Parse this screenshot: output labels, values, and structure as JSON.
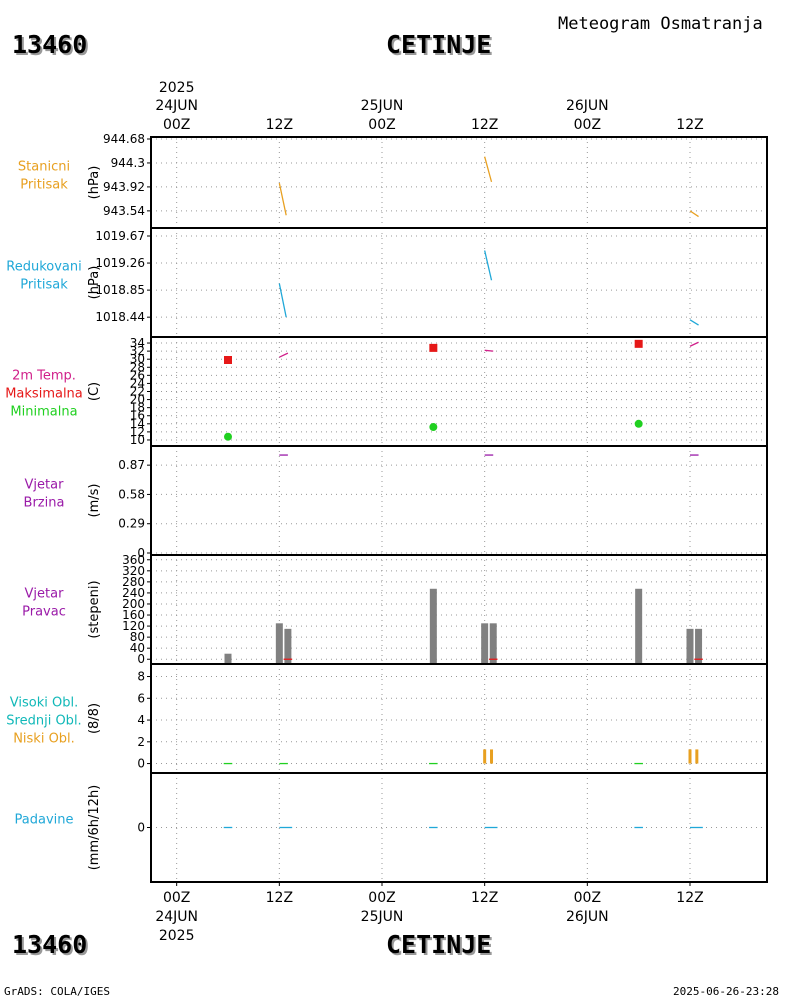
{
  "header": {
    "station_id": "13460",
    "station_name": "CETINJE",
    "product_title": "Meteogram Osmatranja"
  },
  "footer": {
    "station_id": "13460",
    "station_name": "CETINJE",
    "credit": "GrADS: COLA/IGES",
    "timestamp": "2025-06-26-23:28"
  },
  "colors": {
    "orange": "#e8a020",
    "cyan": "#20a8d8",
    "magenta": "#d0208a",
    "red": "#e61818",
    "green": "#20d020",
    "purple": "#9a1aa8",
    "teal": "#10b8b8",
    "gray": "#808080",
    "grid": "#999999"
  },
  "chart_data": {
    "type": "line",
    "x_axis": {
      "hours": [
        0,
        12,
        24,
        36,
        48,
        60
      ],
      "tick_labels": [
        "00Z",
        "12Z",
        "00Z",
        "12Z",
        "00Z",
        "12Z"
      ],
      "date_labels": [
        {
          "hour": 0,
          "text": "24JUN"
        },
        {
          "hour": 24,
          "text": "25JUN"
        },
        {
          "hour": 48,
          "text": "26JUN"
        }
      ],
      "year_label": {
        "hour": 0,
        "text": "2025"
      },
      "xlim": [
        -3,
        69
      ]
    },
    "panels": [
      {
        "id": "stanicni",
        "labels": [
          {
            "text": "Stanicni",
            "color": "orange"
          },
          {
            "text": "Pritisak",
            "color": "orange"
          }
        ],
        "unit": "(hPa)",
        "ylim": [
          943.3,
          944.68
        ],
        "ticks": [
          943.54,
          943.92,
          944.3,
          944.68
        ],
        "tick_labels": [
          "943.54",
          "943.92",
          "944.3",
          "944.68"
        ],
        "series": [
          {
            "name": "Stanicni Pritisak",
            "type": "segments",
            "color": "orange",
            "segments": [
              [
                [
                  12.0,
                  943.98
                ],
                [
                  12.8,
                  943.47
                ]
              ],
              [
                [
                  36.0,
                  944.4
                ],
                [
                  36.8,
                  944.0
                ]
              ],
              [
                [
                  60.0,
                  943.54
                ],
                [
                  61.0,
                  943.45
                ]
              ]
            ]
          }
        ]
      },
      {
        "id": "redukovani",
        "labels": [
          {
            "text": "Redukovani",
            "color": "cyan"
          },
          {
            "text": "Pritisak",
            "color": "cyan"
          }
        ],
        "unit": "(hPa)",
        "ylim": [
          1018.2,
          1019.67
        ],
        "ticks": [
          1018.44,
          1018.85,
          1019.26,
          1019.67
        ],
        "tick_labels": [
          "1018.44",
          "1018.85",
          "1019.26",
          "1019.67"
        ],
        "series": [
          {
            "name": "Redukovani Pritisak",
            "type": "segments",
            "color": "cyan",
            "segments": [
              [
                [
                  12.0,
                  1018.95
                ],
                [
                  12.8,
                  1018.44
                ]
              ],
              [
                [
                  36.0,
                  1019.45
                ],
                [
                  36.8,
                  1019.0
                ]
              ],
              [
                [
                  60.0,
                  1018.4
                ],
                [
                  61.0,
                  1018.32
                ]
              ]
            ]
          }
        ]
      },
      {
        "id": "temperatura",
        "labels": [
          {
            "text": "2m Temp.",
            "color": "magenta"
          },
          {
            "text": "Maksimalna",
            "color": "red"
          },
          {
            "text": "Minimalna",
            "color": "green"
          }
        ],
        "unit": "(C)",
        "ylim": [
          9,
          35
        ],
        "ticks": [
          10,
          12,
          14,
          16,
          18,
          20,
          22,
          24,
          26,
          28,
          30,
          32,
          34
        ],
        "tick_labels": [
          "10",
          "12",
          "14",
          "16",
          "18",
          "20",
          "22",
          "24",
          "26",
          "28",
          "30",
          "32",
          "34"
        ],
        "series": [
          {
            "name": "2m Temp.",
            "type": "segments",
            "color": "magenta",
            "segments": [
              [
                [
                  12.0,
                  30.5
                ],
                [
                  13.0,
                  31.5
                ]
              ],
              [
                [
                  36.0,
                  32.2
                ],
                [
                  37.0,
                  32.0
                ]
              ],
              [
                [
                  60.0,
                  33.2
                ],
                [
                  61.0,
                  34.2
                ]
              ]
            ]
          },
          {
            "name": "Maksimalna",
            "type": "square",
            "color": "red",
            "points": [
              [
                6,
                29.8
              ],
              [
                30,
                32.8
              ],
              [
                54,
                33.8
              ]
            ]
          },
          {
            "name": "Minimalna",
            "type": "dot",
            "color": "green",
            "points": [
              [
                6,
                10.8
              ],
              [
                30,
                13.2
              ],
              [
                54,
                14.0
              ]
            ]
          }
        ]
      },
      {
        "id": "brzina",
        "labels": [
          {
            "text": "Vjetar",
            "color": "purple"
          },
          {
            "text": "Brzina",
            "color": "purple"
          }
        ],
        "unit": "(m/s)",
        "ylim": [
          0,
          1.02
        ],
        "ticks": [
          0,
          0.29,
          0.58,
          0.87
        ],
        "tick_labels": [
          "0",
          "0.29",
          "0.58",
          "0.87"
        ],
        "series": [
          {
            "name": "Vjetar Brzina",
            "type": "segments",
            "color": "purple",
            "segments": [
              [
                [
                  12.0,
                  0.97
                ],
                [
                  13.0,
                  0.97
                ]
              ],
              [
                [
                  36.0,
                  0.97
                ],
                [
                  37.0,
                  0.97
                ]
              ],
              [
                [
                  60.0,
                  0.97
                ],
                [
                  61.0,
                  0.97
                ]
              ]
            ]
          }
        ]
      },
      {
        "id": "pravac",
        "labels": [
          {
            "text": "Vjetar",
            "color": "purple"
          },
          {
            "text": "Pravac",
            "color": "purple"
          }
        ],
        "unit": "(stepeni)",
        "ylim": [
          -10,
          370
        ],
        "ticks": [
          0,
          40,
          80,
          120,
          160,
          200,
          240,
          280,
          320,
          360
        ],
        "tick_labels": [
          "0",
          "40",
          "80",
          "120",
          "160",
          "200",
          "240",
          "280",
          "320",
          "360"
        ],
        "series": [
          {
            "name": "Vjetar Pravac",
            "type": "bars",
            "color": "gray",
            "points": [
              [
                6,
                20
              ],
              [
                12,
                130
              ],
              [
                13,
                110
              ],
              [
                30,
                255
              ],
              [
                36,
                130
              ],
              [
                37,
                130
              ],
              [
                54,
                255
              ],
              [
                60,
                110
              ],
              [
                61,
                110
              ]
            ]
          },
          {
            "name": "Pravac marker",
            "type": "segments",
            "color": "red",
            "segments": [
              [
                [
                  12.5,
                  0
                ],
                [
                  13.5,
                  0
                ]
              ],
              [
                [
                  36.5,
                  0
                ],
                [
                  37.5,
                  0
                ]
              ],
              [
                [
                  60.5,
                  0
                ],
                [
                  61.5,
                  0
                ]
              ]
            ]
          }
        ]
      },
      {
        "id": "oblacnost",
        "labels": [
          {
            "text": "Visoki Obl.",
            "color": "teal"
          },
          {
            "text": "Srednji Obl.",
            "color": "teal"
          },
          {
            "text": "Niski Obl.",
            "color": "orange"
          }
        ],
        "unit": "(8/8)",
        "ylim": [
          -0.5,
          8.6
        ],
        "ticks": [
          0,
          2,
          4,
          6,
          8
        ],
        "tick_labels": [
          "0",
          "2",
          "4",
          "6",
          "8"
        ],
        "series": [
          {
            "name": "Niski Obl.",
            "type": "thinbars",
            "color": "orange",
            "points": [
              [
                36.0,
                1.3
              ],
              [
                36.8,
                1.3
              ],
              [
                60.0,
                1.3
              ],
              [
                60.8,
                1.3
              ]
            ]
          },
          {
            "name": "Srednji Obl.",
            "type": "segments",
            "color": "green",
            "segments": [
              [
                [
                  5.5,
                  0
                ],
                [
                  6.5,
                  0
                ]
              ],
              [
                [
                  12.0,
                  0
                ],
                [
                  13.0,
                  0
                ]
              ],
              [
                [
                  29.5,
                  0
                ],
                [
                  30.5,
                  0
                ]
              ],
              [
                [
                  53.5,
                  0
                ],
                [
                  54.5,
                  0
                ]
              ]
            ]
          }
        ]
      },
      {
        "id": "padavine",
        "labels": [
          {
            "text": "Padavine",
            "color": "cyan"
          }
        ],
        "unit": "(mm/6h/12h)",
        "ylim": [
          -1,
          1
        ],
        "ticks": [
          0
        ],
        "tick_labels": [
          "0"
        ],
        "series": [
          {
            "name": "Padavine",
            "type": "segments",
            "color": "cyan",
            "segments": [
              [
                [
                  5.5,
                  0
                ],
                [
                  6.5,
                  0
                ]
              ],
              [
                [
                  12.0,
                  0
                ],
                [
                  13.5,
                  0
                ]
              ],
              [
                [
                  29.5,
                  0
                ],
                [
                  30.5,
                  0
                ]
              ],
              [
                [
                  36.0,
                  0
                ],
                [
                  37.5,
                  0
                ]
              ],
              [
                [
                  53.5,
                  0
                ],
                [
                  54.5,
                  0
                ]
              ],
              [
                [
                  60.0,
                  0
                ],
                [
                  61.5,
                  0
                ]
              ]
            ]
          }
        ]
      }
    ]
  }
}
